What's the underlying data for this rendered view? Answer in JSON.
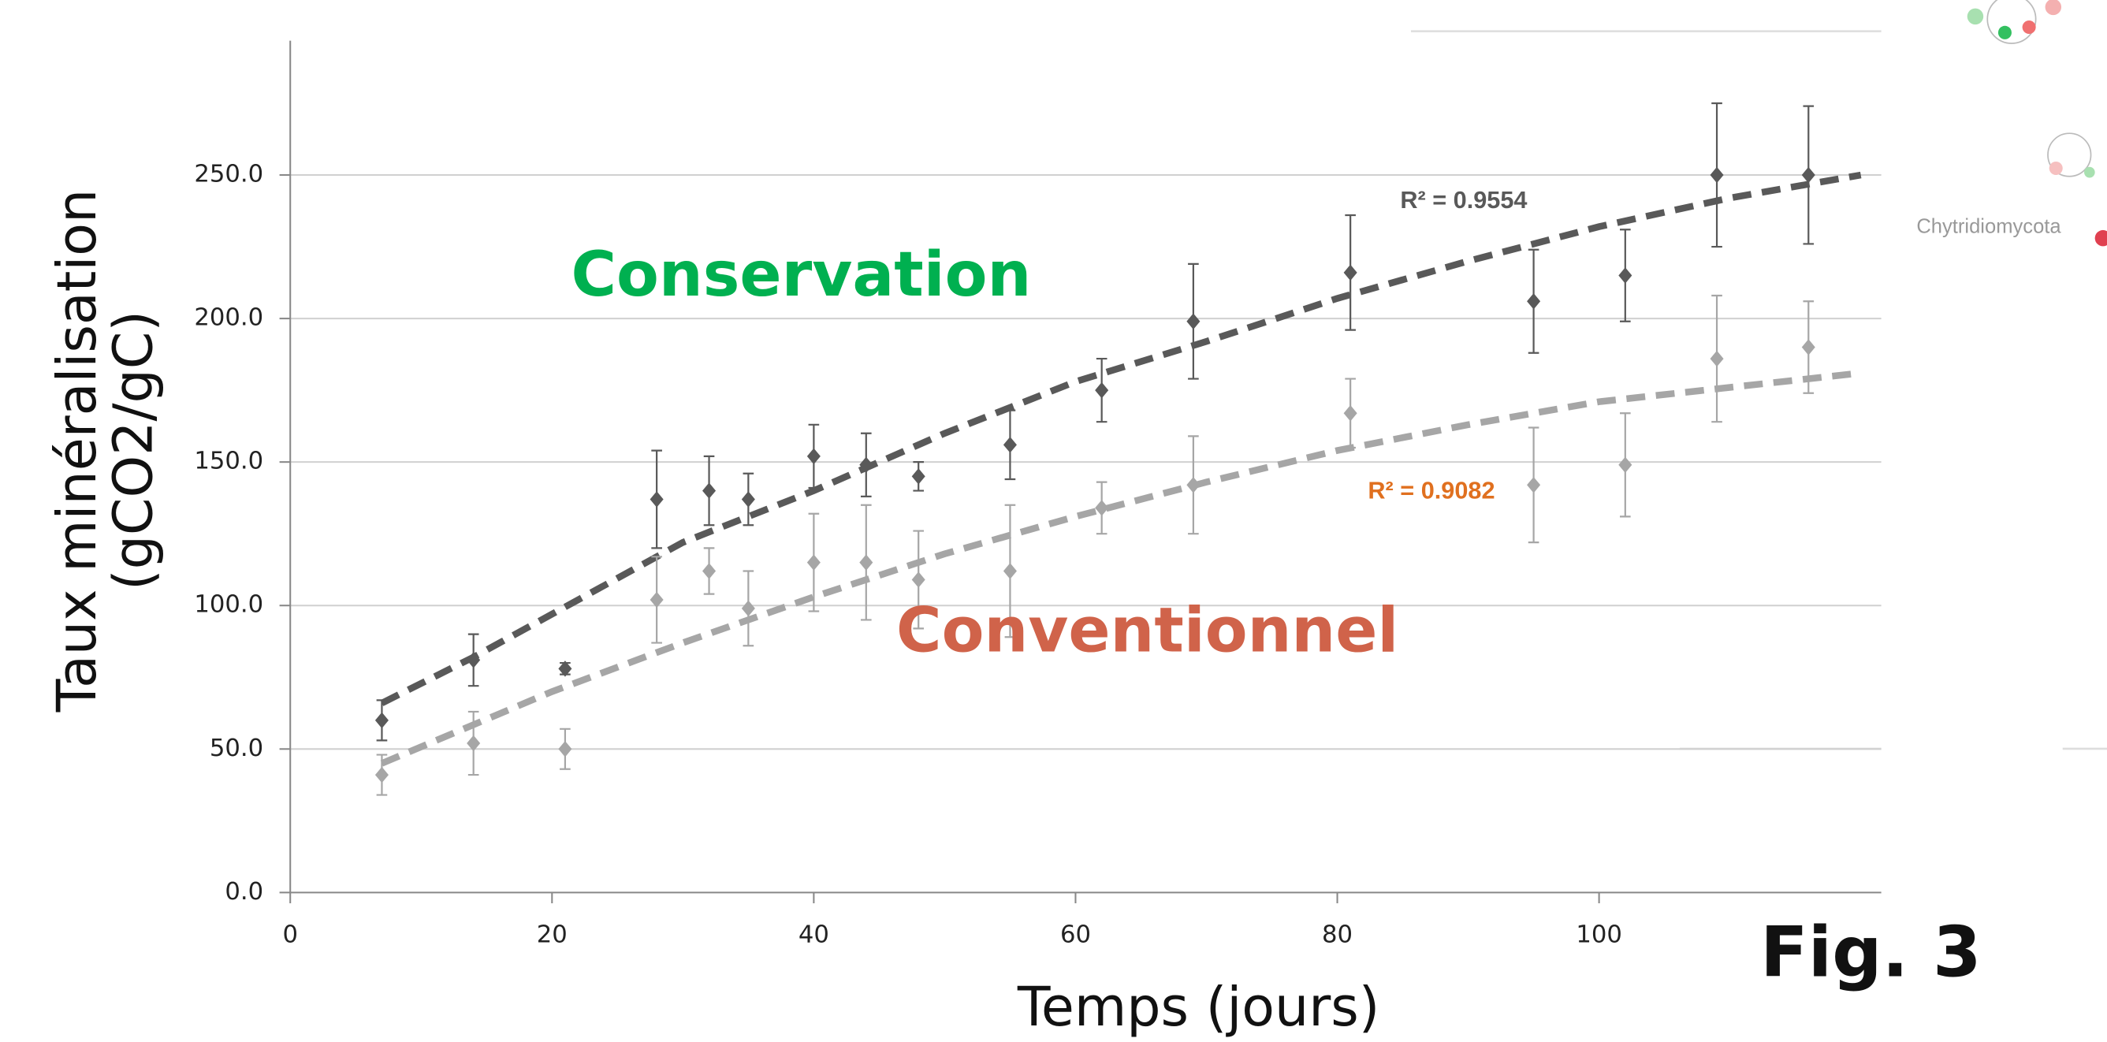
{
  "chart_data": {
    "type": "scatter",
    "xlabel": "Temps (jours)",
    "ylabel": [
      "Taux minéralisation",
      "(gCO2/gC)"
    ],
    "xlim": [
      0,
      121.6
    ],
    "ylim": [
      0,
      300
    ],
    "xticks": [
      0,
      20,
      40,
      60,
      80,
      100
    ],
    "yticks": [
      {
        "value": 0,
        "label": "0.0"
      },
      {
        "value": 50,
        "label": "50.0"
      },
      {
        "value": 100,
        "label": "100.0"
      },
      {
        "value": 150,
        "label": "150.0"
      },
      {
        "value": 200,
        "label": "200.0"
      },
      {
        "value": 250,
        "label": "250.0"
      }
    ],
    "grid": true,
    "series": [
      {
        "name": "Conservation",
        "color": "#595959",
        "label_color": "#00b050",
        "x": [
          7,
          14,
          21,
          28,
          32,
          35,
          40,
          44,
          48,
          55,
          62,
          69,
          81,
          95,
          102,
          109,
          116
        ],
        "values": [
          60,
          81,
          78,
          137,
          140,
          137,
          152,
          149,
          145,
          156,
          175,
          199,
          216,
          206,
          215,
          250,
          250
        ],
        "errors": [
          7,
          9,
          2,
          17,
          12,
          9,
          11,
          11,
          5,
          12,
          11,
          20,
          20,
          18,
          16,
          25,
          24
        ],
        "trend": {
          "x": [
            7,
            14,
            20,
            30,
            40,
            50,
            60,
            70,
            80,
            90,
            100,
            110,
            120
          ],
          "values": [
            66,
            82,
            97,
            122,
            140,
            160,
            178,
            192,
            207,
            220,
            232,
            242,
            250
          ],
          "label": "R² = 0.9554",
          "label_color": "#595959"
        }
      },
      {
        "name": "Conventionnel",
        "color": "#a6a6a6",
        "label_color": "#d0634a",
        "x": [
          7,
          14,
          21,
          28,
          32,
          35,
          40,
          44,
          48,
          55,
          62,
          69,
          81,
          95,
          102,
          109,
          116
        ],
        "values": [
          41,
          52,
          50,
          102,
          112,
          99,
          115,
          115,
          109,
          112,
          134,
          142,
          167,
          142,
          149,
          186,
          190
        ],
        "errors": [
          7,
          11,
          7,
          15,
          8,
          13,
          17,
          20,
          17,
          23,
          9,
          17,
          12,
          20,
          18,
          22,
          16
        ],
        "trend": {
          "x": [
            7,
            20,
            30,
            40,
            50,
            60,
            70,
            80,
            90,
            100,
            110,
            120
          ],
          "values": [
            45,
            70,
            87,
            103,
            118,
            131,
            143,
            154,
            163,
            171,
            176,
            181
          ],
          "label": "R² = 0.9082",
          "label_color": "#e0701f"
        }
      }
    ],
    "figure_label": "Fig. 3",
    "side_label": "Chytridiomycota"
  }
}
